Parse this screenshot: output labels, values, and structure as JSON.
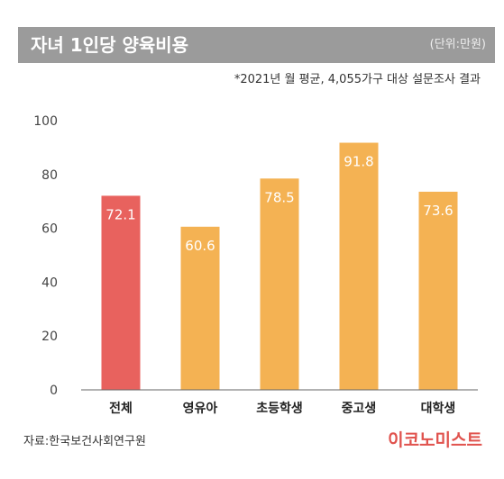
{
  "header": {
    "title": "자녀 1인당 양육비용",
    "unit": "(단위:만원)"
  },
  "note": "*2021년 월 평균, 4,055가구 대상 설문조사 결과",
  "source": "자료:한국보건사회연구원",
  "brand": "이코노미스트",
  "colors": {
    "header_bg": "#9b9b9b",
    "highlight": "#e8625e",
    "bar": "#f4b253",
    "brand": "#e0524d"
  },
  "chart_data": {
    "type": "bar",
    "categories": [
      "전체",
      "영유아",
      "초등학생",
      "중고생",
      "대학생"
    ],
    "values": [
      72.1,
      60.6,
      78.5,
      91.8,
      73.6
    ],
    "value_labels": [
      "72.1",
      "60.6",
      "78.5",
      "91.8",
      "73.6"
    ],
    "highlight_index": 0,
    "ylim": [
      0,
      100
    ],
    "yticks": [
      "0",
      "20",
      "40",
      "60",
      "80",
      "100"
    ],
    "grid": false,
    "title": "자녀 1인당 양육비용",
    "xlabel": "",
    "ylabel": ""
  }
}
